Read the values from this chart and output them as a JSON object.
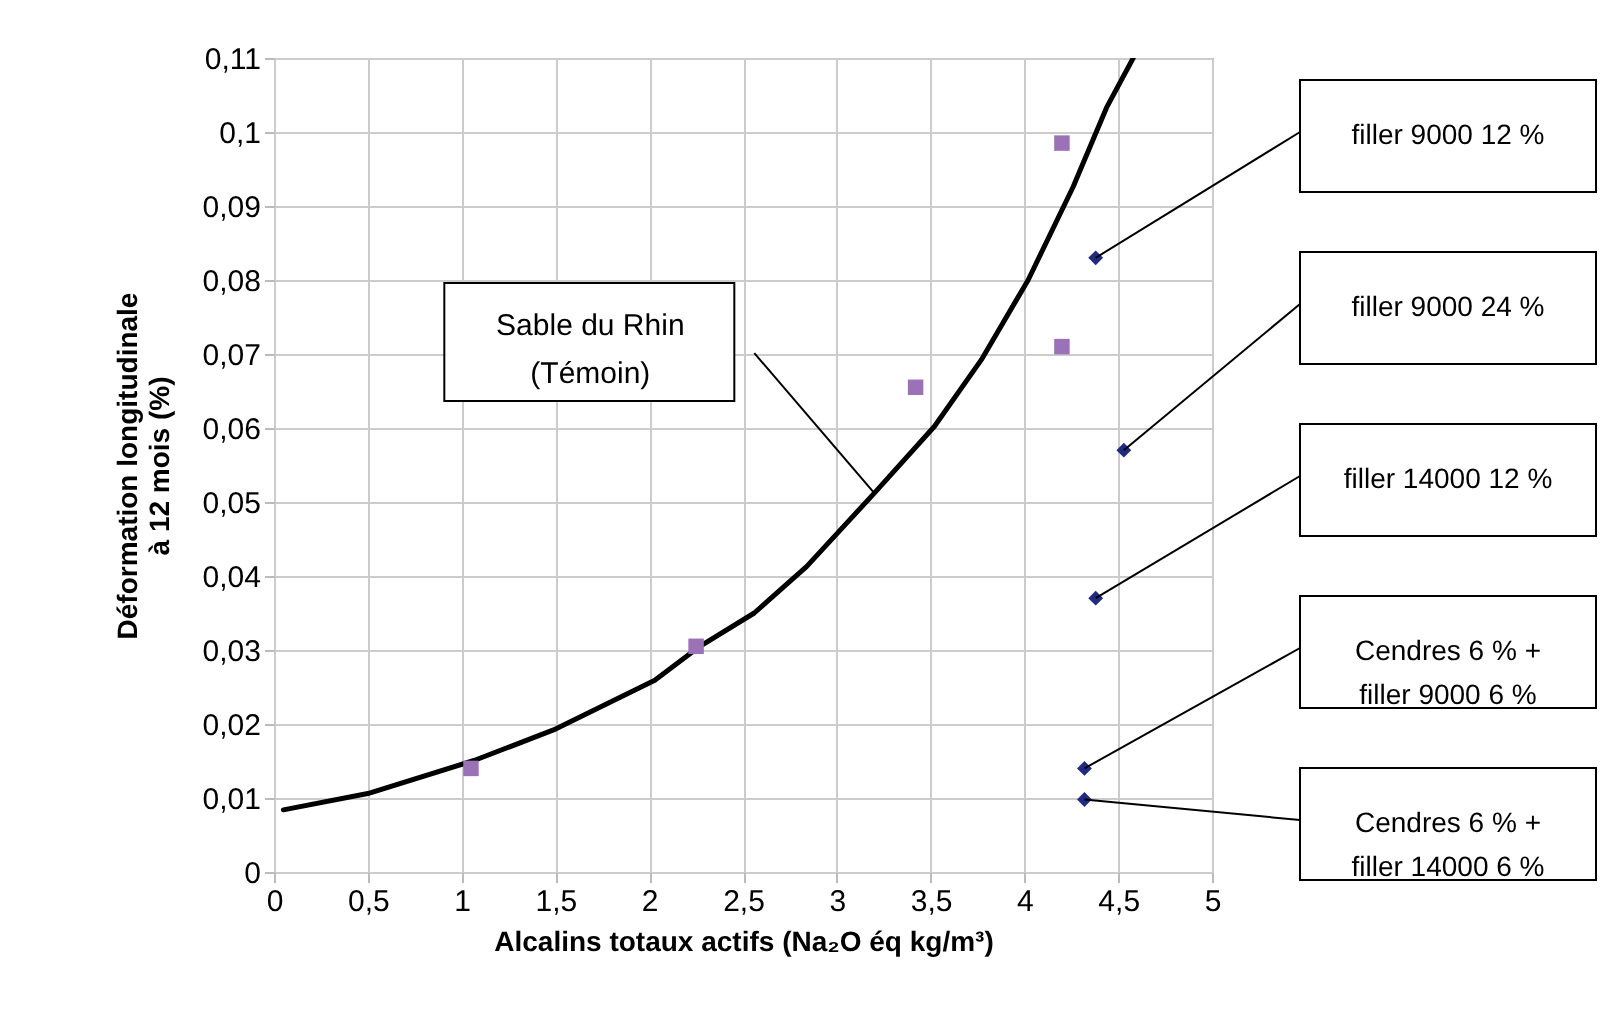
{
  "chart_data": {
    "type": "scatter",
    "xlabel": "Alcalins totaux actifs      (Na₂O éq kg/m³)",
    "ylabel": "Déformation longitudinale\nà 12 mois  (%)",
    "xlim": [
      0,
      5
    ],
    "ylim": [
      0,
      0.11
    ],
    "xticks": [
      0,
      {
        "value": 0.5,
        "label": "0,5"
      },
      1,
      {
        "value": 1.5,
        "label": "1,5"
      },
      2,
      {
        "value": 2.5,
        "label": "2,5"
      },
      3,
      {
        "value": 3.5,
        "label": "3,5"
      },
      4,
      {
        "value": 4.5,
        "label": "4,5"
      },
      5
    ],
    "yticks": [
      0,
      {
        "value": 0.01,
        "label": "0,01"
      },
      {
        "value": 0.02,
        "label": "0,02"
      },
      {
        "value": 0.03,
        "label": "0,03"
      },
      {
        "value": 0.04,
        "label": "0,04"
      },
      {
        "value": 0.05,
        "label": "0,05"
      },
      {
        "value": 0.06,
        "label": "0,06"
      },
      {
        "value": 0.07,
        "label": "0,07"
      },
      {
        "value": 0.08,
        "label": "0,08"
      },
      {
        "value": 0.09,
        "label": "0,09"
      },
      {
        "value": 0.1,
        "label": "0,1"
      },
      {
        "value": 0.11,
        "label": "0,11"
      }
    ],
    "grid": true,
    "series": [
      {
        "type": "line",
        "color": "#000000",
        "marker": "none",
        "x": [
          0.05,
          0.5,
          1.07,
          1.49,
          2.03,
          2.27,
          2.56,
          2.84,
          3.2,
          3.52,
          3.77,
          4.02,
          4.26,
          4.44,
          4.58
        ],
        "values": [
          0.0084,
          0.0106,
          0.0151,
          0.0192,
          0.0259,
          0.0305,
          0.035,
          0.0413,
          0.0512,
          0.0602,
          0.0692,
          0.08,
          0.0926,
          0.1034,
          0.11
        ]
      },
      {
        "type": "scatter",
        "color": "#9b72b8",
        "marker": "square",
        "x": [
          1.05,
          2.25,
          3.42,
          4.2,
          4.2
        ],
        "values": [
          0.014,
          0.0305,
          0.0655,
          0.0985,
          0.071
        ]
      },
      {
        "type": "scatter",
        "color": "#1f2a80",
        "marker": "diamond",
        "x": [
          4.38,
          4.53,
          4.38,
          4.32,
          4.32
        ],
        "values": [
          0.083,
          0.057,
          0.037,
          0.014,
          0.0098
        ]
      }
    ],
    "annotations": [
      "Sable du Rhin\n(Témoin)",
      "filler 9000 12 %",
      "filler 9000 24 %",
      "filler 14000 12 %",
      "Cendres 6 % +\nfiller 9000 6 %",
      "Cendres 6 % +\nfiller 14000 6 %"
    ]
  }
}
